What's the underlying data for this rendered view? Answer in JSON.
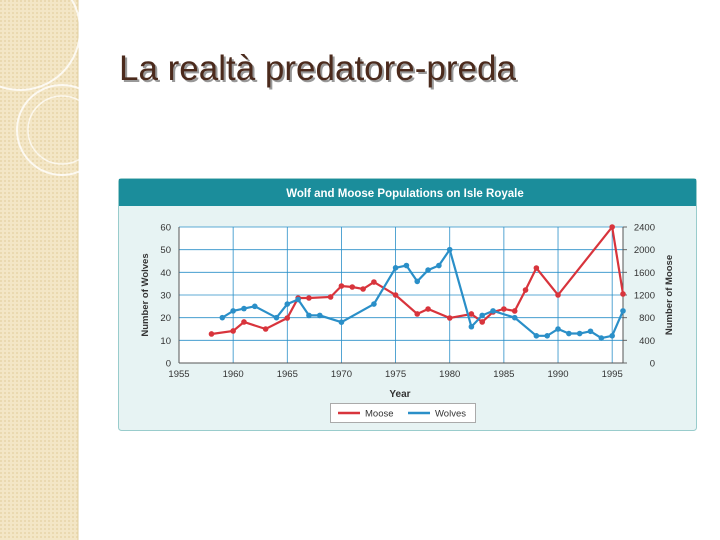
{
  "slide_title": "La realtà predatore-preda",
  "chart_data": {
    "type": "line",
    "title": "Wolf and Moose Populations on Isle Royale",
    "xlabel": "Year",
    "ylabel": "Number of Wolves",
    "y2label": "Number of Moose",
    "xlim": [
      1955,
      1996
    ],
    "xticks": [
      1955,
      1960,
      1965,
      1970,
      1975,
      1980,
      1985,
      1990,
      1995
    ],
    "ylim": [
      0,
      60
    ],
    "yticks": [
      0,
      10,
      20,
      30,
      40,
      50,
      60
    ],
    "y2lim": [
      0,
      2400
    ],
    "y2ticks": [
      0,
      400,
      800,
      1200,
      1600,
      2000,
      2400
    ],
    "grid": true,
    "legend": "bottom",
    "series": [
      {
        "name": "Moose",
        "color": "#d8343c",
        "axis": "y2",
        "x": [
          1958,
          1960,
          1961,
          1963,
          1965,
          1966,
          1967,
          1969,
          1970,
          1971,
          1972,
          1973,
          1975,
          1977,
          1978,
          1980,
          1982,
          1983,
          1984,
          1985,
          1986,
          1987,
          1988,
          1990,
          1995,
          1996
        ],
        "values": [
          512,
          565,
          724,
          600,
          794,
          1147,
          1147,
          1165,
          1359,
          1341,
          1306,
          1429,
          1200,
          865,
          953,
          794,
          865,
          724,
          900,
          953,
          918,
          1288,
          1676,
          1200,
          2400,
          1218
        ]
      },
      {
        "name": "Wolves",
        "color": "#2a8fc8",
        "axis": "y",
        "x": [
          1959,
          1960,
          1961,
          1962,
          1964,
          1965,
          1966,
          1967,
          1968,
          1970,
          1973,
          1975,
          1976,
          1977,
          1978,
          1979,
          1980,
          1982,
          1983,
          1984,
          1986,
          1988,
          1989,
          1990,
          1991,
          1992,
          1993,
          1994,
          1995,
          1996
        ],
        "values": [
          20,
          23,
          24,
          25,
          20,
          26,
          28,
          21,
          21,
          18,
          26,
          42,
          43,
          36,
          41,
          43,
          50,
          16,
          21,
          23,
          20,
          12,
          12,
          15,
          13,
          13,
          14,
          11,
          12,
          23
        ]
      }
    ]
  }
}
